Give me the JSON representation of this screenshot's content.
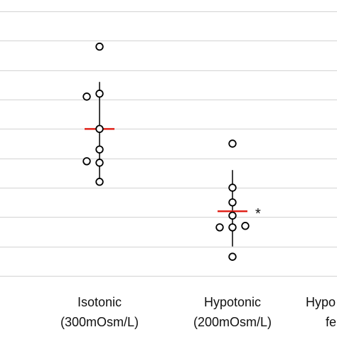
{
  "chart_data": {
    "type": "scatter",
    "categories": [
      {
        "line1": "Isotonic",
        "line2": "(300mOsm/L)"
      },
      {
        "line1": "Hypotonic",
        "line2": "(200mOsm/L)"
      },
      {
        "line1": "Hypo",
        "line2": "fe"
      }
    ],
    "y_gridlines": 9,
    "grid": true,
    "series": [
      {
        "category_index": 0,
        "points": [
          {
            "offset": 0.0,
            "value": 7.8
          },
          {
            "offset": 0.0,
            "value": 6.2
          },
          {
            "offset": -1.0,
            "value": 6.1
          },
          {
            "offset": 0.0,
            "value": 5.0
          },
          {
            "offset": 0.0,
            "value": 4.3
          },
          {
            "offset": -1.0,
            "value": 3.9
          },
          {
            "offset": 0.0,
            "value": 3.85
          },
          {
            "offset": 0.0,
            "value": 3.2
          }
        ],
        "mean": 5.0,
        "range": [
          3.2,
          6.6
        ],
        "annotation": ""
      },
      {
        "category_index": 1,
        "points": [
          {
            "offset": 0.0,
            "value": 4.5
          },
          {
            "offset": 0.0,
            "value": 3.0
          },
          {
            "offset": 0.0,
            "value": 2.5
          },
          {
            "offset": 0.0,
            "value": 2.05
          },
          {
            "offset": -1.0,
            "value": 1.65
          },
          {
            "offset": 0.0,
            "value": 1.65
          },
          {
            "offset": 1.0,
            "value": 1.7
          },
          {
            "offset": 0.0,
            "value": 0.65
          }
        ],
        "mean": 2.2,
        "range": [
          1.0,
          3.6
        ],
        "annotation": "*"
      }
    ],
    "ylim": [
      0,
      9
    ],
    "colors": {
      "mean_line": "#e0231a",
      "point": "#000000",
      "grid": "#d3d3d3",
      "range_line": "#000000"
    }
  }
}
